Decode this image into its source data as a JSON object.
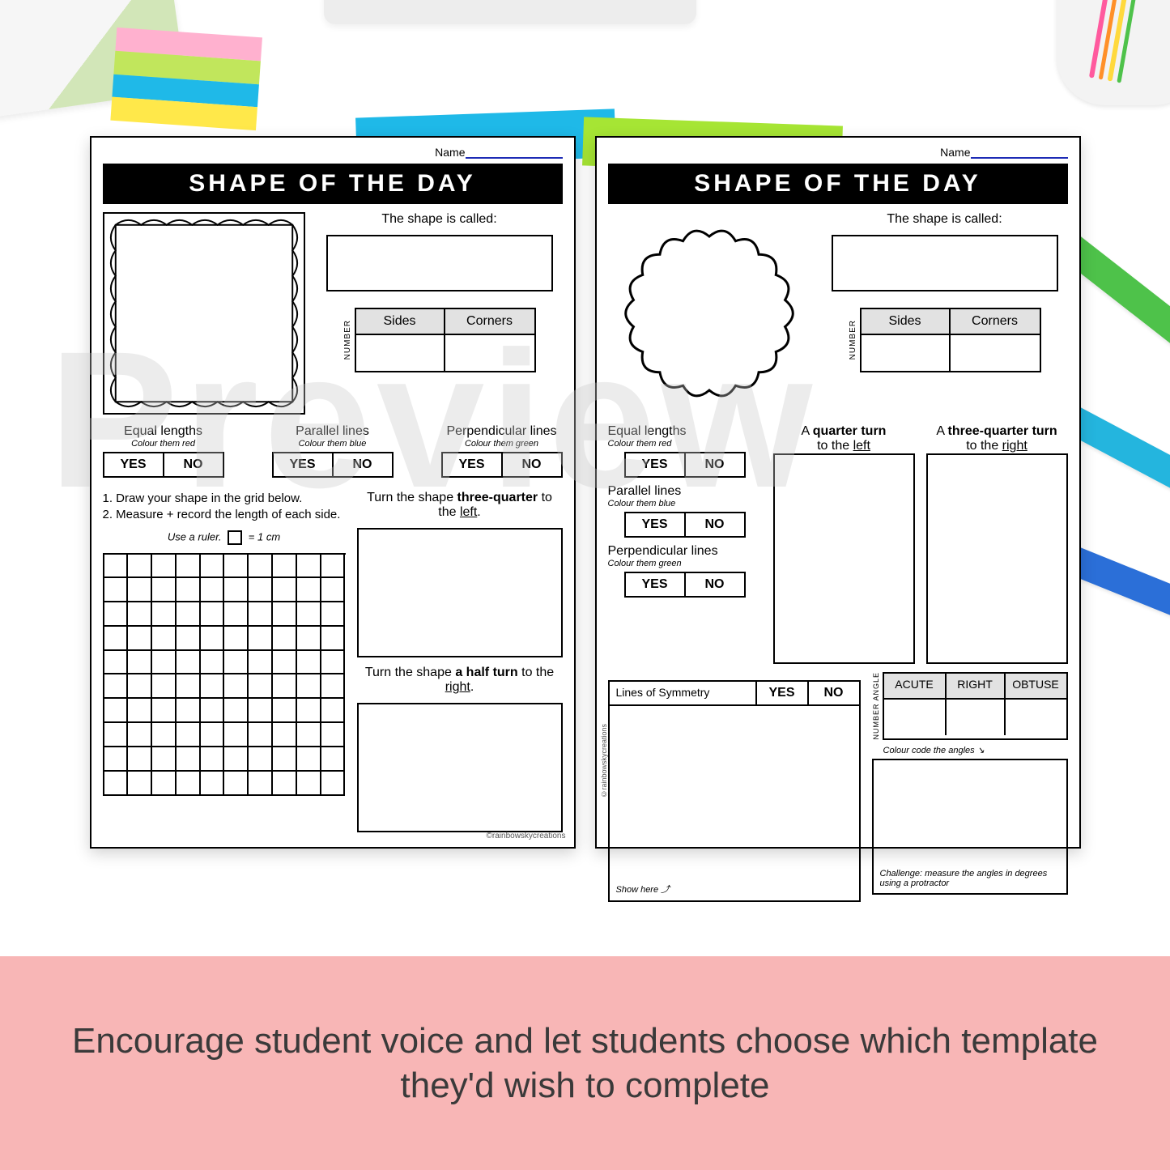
{
  "watermark": "Preview",
  "caption": "Encourage student voice and let students choose which template they'd wish to complete",
  "caption_band_color": "#f8b6b6",
  "props": {
    "sticky_colors": [
      "#ffb1cf",
      "#c1e65c",
      "#1fb9e8",
      "#ffe84a"
    ],
    "pen_colors": [
      "#ff5a9e",
      "#ff9028",
      "#ffd93d",
      "#4ec24a"
    ]
  },
  "worksheet": {
    "name_label": "Name",
    "title": "SHAPE OF THE DAY",
    "shape_called": "The shape is called:",
    "sides": "Sides",
    "corners": "Corners",
    "number_vlabel": "NUMBER",
    "equal_lengths": {
      "title": "Equal lengths",
      "sub": "Colour them red",
      "yes": "YES",
      "no": "NO"
    },
    "parallel": {
      "title": "Parallel lines",
      "sub": "Colour them blue",
      "yes": "YES",
      "no": "NO"
    },
    "perpendicular": {
      "title": "Perpendicular lines",
      "sub": "Colour them green",
      "yes": "YES",
      "no": "NO"
    },
    "credit": "©rainbowskycreations"
  },
  "sheet1": {
    "instr1": "1.  Draw your shape in the grid below.",
    "instr2": "2.  Measure + record the length of each side.",
    "ruler_text_a": "Use a ruler.",
    "ruler_text_b": "= 1 cm",
    "turn1_a": "Turn the shape ",
    "turn1_b": "three-quarter",
    "turn1_c": " to the ",
    "turn1_d": "left",
    "turn2_a": "Turn the shape ",
    "turn2_b": "a half turn",
    "turn2_c": " to the ",
    "turn2_d": "right"
  },
  "sheet2": {
    "q_turn_a": "A ",
    "q_turn_b": "quarter turn",
    "q_turn_c": " to the ",
    "q_turn_d": "left",
    "tq_turn_a": "A ",
    "tq_turn_b": "three-quarter turn",
    "tq_turn_c": " to the ",
    "tq_turn_d": "right",
    "sym_label": "Lines of Symmetry",
    "yes": "YES",
    "no": "NO",
    "angle": {
      "acute": "ACUTE",
      "right": "RIGHT",
      "obtuse": "OBTUSE",
      "vlabel": "NUMBER  ANGLE"
    },
    "colour_code": "Colour code the angles",
    "show_here": "Show here",
    "challenge": "Challenge: measure the angles in degrees using a protractor"
  }
}
